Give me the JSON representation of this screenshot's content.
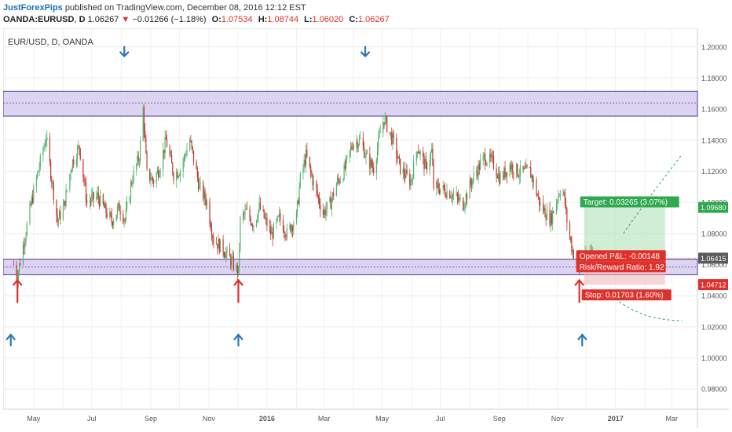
{
  "header": {
    "author": "JustForexPips",
    "published": "published on TradingView.com, December 08, 2016 12:12 EST",
    "symbol": "OANDA:EURUSD",
    "interval": "D",
    "last": "1.06267",
    "change": "−0.01266 (−1.18%)",
    "o_label": "O:",
    "o_val": "1.07534",
    "h_label": "H:",
    "h_val": "1.08744",
    "l_label": "L:",
    "l_val": "1.06020",
    "c_label": "C:",
    "c_val": "1.06267"
  },
  "chart_data": {
    "type": "candlestick",
    "symbol_label": "EUR/USD, D, OANDA",
    "x_tick_labels": [
      "May",
      "Jul",
      "Sep",
      "Nov",
      "2016",
      "Mar",
      "May",
      "Jul",
      "Sep",
      "Nov",
      "2017",
      "Mar"
    ],
    "y_tick_labels": [
      "1.20000",
      "1.18000",
      "1.16000",
      "1.14000",
      "1.12000",
      "1.10000",
      "1.08000",
      "1.06000",
      "1.04000",
      "1.02000",
      "1.00000",
      "0.98000"
    ],
    "y_ticks": [
      1.2,
      1.18,
      1.16,
      1.14,
      1.12,
      1.1,
      1.08,
      1.06,
      1.04,
      1.02,
      1.0,
      0.98
    ],
    "ylim": [
      0.967,
      1.212
    ],
    "x_months": [
      "2015-04",
      "2015-05",
      "2015-06",
      "2015-07",
      "2015-08",
      "2015-09",
      "2015-10",
      "2015-11",
      "2015-12",
      "2016-01",
      "2016-02",
      "2016-03",
      "2016-04",
      "2016-05",
      "2016-06",
      "2016-07",
      "2016-08",
      "2016-09",
      "2016-10",
      "2016-11",
      "2016-12",
      "2017-01",
      "2017-02",
      "2017-03"
    ],
    "close_path": [
      [
        "2015-04-10",
        1.06
      ],
      [
        "2015-04-14",
        1.053
      ],
      [
        "2015-04-20",
        1.072
      ],
      [
        "2015-04-28",
        1.098
      ],
      [
        "2015-05-05",
        1.118
      ],
      [
        "2015-05-14",
        1.142
      ],
      [
        "2015-05-26",
        1.088
      ],
      [
        "2015-06-02",
        1.098
      ],
      [
        "2015-06-10",
        1.125
      ],
      [
        "2015-06-18",
        1.136
      ],
      [
        "2015-06-26",
        1.1
      ],
      [
        "2015-07-07",
        1.104
      ],
      [
        "2015-07-16",
        1.094
      ],
      [
        "2015-07-22",
        1.088
      ],
      [
        "2015-07-30",
        1.097
      ],
      [
        "2015-08-05",
        1.089
      ],
      [
        "2015-08-12",
        1.114
      ],
      [
        "2015-08-20",
        1.13
      ],
      [
        "2015-08-24",
        1.16
      ],
      [
        "2015-08-28",
        1.118
      ],
      [
        "2015-09-04",
        1.114
      ],
      [
        "2015-09-10",
        1.122
      ],
      [
        "2015-09-17",
        1.14
      ],
      [
        "2015-09-25",
        1.118
      ],
      [
        "2015-10-02",
        1.121
      ],
      [
        "2015-10-12",
        1.14
      ],
      [
        "2015-10-22",
        1.11
      ],
      [
        "2015-10-30",
        1.1
      ],
      [
        "2015-11-06",
        1.076
      ],
      [
        "2015-11-16",
        1.07
      ],
      [
        "2015-11-26",
        1.061
      ],
      [
        "2015-12-02",
        1.055
      ],
      [
        "2015-12-04",
        1.088
      ],
      [
        "2015-12-10",
        1.094
      ],
      [
        "2015-12-18",
        1.086
      ],
      [
        "2015-12-24",
        1.097
      ],
      [
        "2016-01-06",
        1.079
      ],
      [
        "2016-01-14",
        1.09
      ],
      [
        "2016-01-22",
        1.08
      ],
      [
        "2016-02-01",
        1.091
      ],
      [
        "2016-02-05",
        1.115
      ],
      [
        "2016-02-11",
        1.13
      ],
      [
        "2016-02-19",
        1.112
      ],
      [
        "2016-02-29",
        1.093
      ],
      [
        "2016-03-08",
        1.1
      ],
      [
        "2016-03-14",
        1.112
      ],
      [
        "2016-03-22",
        1.12
      ],
      [
        "2016-03-31",
        1.138
      ],
      [
        "2016-04-08",
        1.14
      ],
      [
        "2016-04-15",
        1.128
      ],
      [
        "2016-04-22",
        1.122
      ],
      [
        "2016-04-29",
        1.145
      ],
      [
        "2016-05-03",
        1.154
      ],
      [
        "2016-05-12",
        1.14
      ],
      [
        "2016-05-20",
        1.122
      ],
      [
        "2016-05-31",
        1.113
      ],
      [
        "2016-06-07",
        1.136
      ],
      [
        "2016-06-16",
        1.122
      ],
      [
        "2016-06-22",
        1.133
      ],
      [
        "2016-06-24",
        1.11
      ],
      [
        "2016-07-01",
        1.109
      ],
      [
        "2016-07-12",
        1.106
      ],
      [
        "2016-07-25",
        1.099
      ],
      [
        "2016-08-03",
        1.114
      ],
      [
        "2016-08-16",
        1.129
      ],
      [
        "2016-08-25",
        1.126
      ],
      [
        "2016-09-02",
        1.115
      ],
      [
        "2016-09-12",
        1.124
      ],
      [
        "2016-09-22",
        1.119
      ],
      [
        "2016-10-03",
        1.12
      ],
      [
        "2016-10-06",
        1.115
      ],
      [
        "2016-10-14",
        1.098
      ],
      [
        "2016-10-25",
        1.089
      ],
      [
        "2016-11-04",
        1.109
      ],
      [
        "2016-11-08",
        1.104
      ],
      [
        "2016-11-11",
        1.088
      ],
      [
        "2016-11-16",
        1.071
      ],
      [
        "2016-11-24",
        1.056
      ],
      [
        "2016-11-28",
        1.061
      ],
      [
        "2016-12-02",
        1.066
      ],
      [
        "2016-12-06",
        1.072
      ],
      [
        "2016-12-08",
        1.0627
      ]
    ],
    "resistance_zone": [
      1.1555,
      1.1715
    ],
    "resistance_mid": 1.164,
    "support_zone": [
      1.0535,
      1.0635
    ],
    "support_mid": 1.0585,
    "top_arrow_dates": [
      "2015-08-24",
      "2016-05-03"
    ],
    "low_arrow_dates": [
      "2015-04-14",
      "2015-12-02",
      "2016-11-24"
    ],
    "bottom_arrow_dates": [
      "2015-04-07",
      "2015-12-02",
      "2016-11-27"
    ],
    "entry_price": 1.06415,
    "target_price": 1.0968,
    "stop_price": 1.04712,
    "position_start": "2016-11-29",
    "position_end": "2017-02-22",
    "projection_end": "2017-03-12",
    "projection_up": 1.131,
    "projection_down": 1.024
  },
  "annotations": {
    "target_text": "Target: 0.03265 (3.07%)",
    "opened_text": "Opened P&L: -0.00148",
    "risk_text": "Risk/Reward Ratio: 1.92",
    "stop_text": "Stop: 0.01703 (1.60%)",
    "price_target": "1.09680",
    "price_entry": "1.06415",
    "price_stop": "1.04712"
  },
  "colors": {
    "up": "#52b36b",
    "down": "#c0392b",
    "zone_fill": "#d6ccef",
    "zone_line": "#4b3a9e",
    "arrow_blue": "#2f78b8",
    "arrow_red": "#e0302b",
    "target_green": "#2fa84f",
    "stop_red": "#e0302b",
    "entry_gray": "#555555"
  }
}
